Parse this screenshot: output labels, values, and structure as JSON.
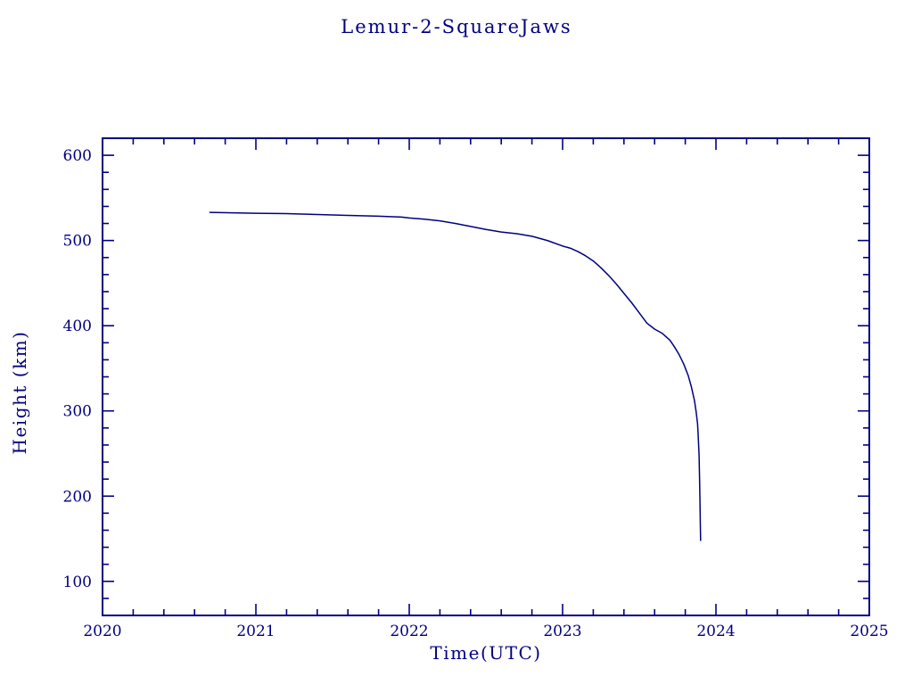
{
  "chart_data": {
    "type": "line",
    "title": "Lemur-2-SquareJaws",
    "xlabel": "Time(UTC)",
    "ylabel": "Height (km)",
    "xlim": [
      2020,
      2025
    ],
    "ylim": [
      60,
      620
    ],
    "x_major_ticks": [
      2020,
      2021,
      2022,
      2023,
      2024,
      2025
    ],
    "x_minor_step": 0.2,
    "y_major_ticks": [
      100,
      200,
      300,
      400,
      500,
      600
    ],
    "y_minor_step": 20,
    "grid": false,
    "legend": "none",
    "colors": {
      "axis": "#000080",
      "text": "#000080",
      "line": "#000080",
      "background": "#ffffff"
    },
    "series": [
      {
        "name": "Lemur-2-SquareJaws height",
        "points": [
          [
            2020.7,
            533
          ],
          [
            2020.85,
            532.5
          ],
          [
            2021.0,
            532
          ],
          [
            2021.2,
            531.5
          ],
          [
            2021.4,
            530.5
          ],
          [
            2021.6,
            529.5
          ],
          [
            2021.8,
            528.5
          ],
          [
            2021.95,
            527.5
          ],
          [
            2022.0,
            526.5
          ],
          [
            2022.1,
            525
          ],
          [
            2022.2,
            523
          ],
          [
            2022.3,
            520
          ],
          [
            2022.4,
            516.5
          ],
          [
            2022.5,
            513
          ],
          [
            2022.6,
            510
          ],
          [
            2022.7,
            508
          ],
          [
            2022.8,
            505
          ],
          [
            2022.9,
            500
          ],
          [
            2023.0,
            493.5
          ],
          [
            2023.05,
            491
          ],
          [
            2023.1,
            487
          ],
          [
            2023.15,
            482
          ],
          [
            2023.2,
            476
          ],
          [
            2023.25,
            468
          ],
          [
            2023.3,
            459
          ],
          [
            2023.35,
            449
          ],
          [
            2023.4,
            438
          ],
          [
            2023.45,
            427
          ],
          [
            2023.5,
            415
          ],
          [
            2023.55,
            403
          ],
          [
            2023.6,
            396
          ],
          [
            2023.65,
            391
          ],
          [
            2023.7,
            383
          ],
          [
            2023.73,
            375
          ],
          [
            2023.76,
            366
          ],
          [
            2023.79,
            355
          ],
          [
            2023.82,
            341
          ],
          [
            2023.84,
            328
          ],
          [
            2023.86,
            312
          ],
          [
            2023.87,
            300
          ],
          [
            2023.88,
            285
          ],
          [
            2023.885,
            268
          ],
          [
            2023.89,
            248
          ],
          [
            2023.893,
            222
          ],
          [
            2023.896,
            192
          ],
          [
            2023.898,
            168
          ],
          [
            2023.9,
            148
          ]
        ]
      }
    ]
  }
}
